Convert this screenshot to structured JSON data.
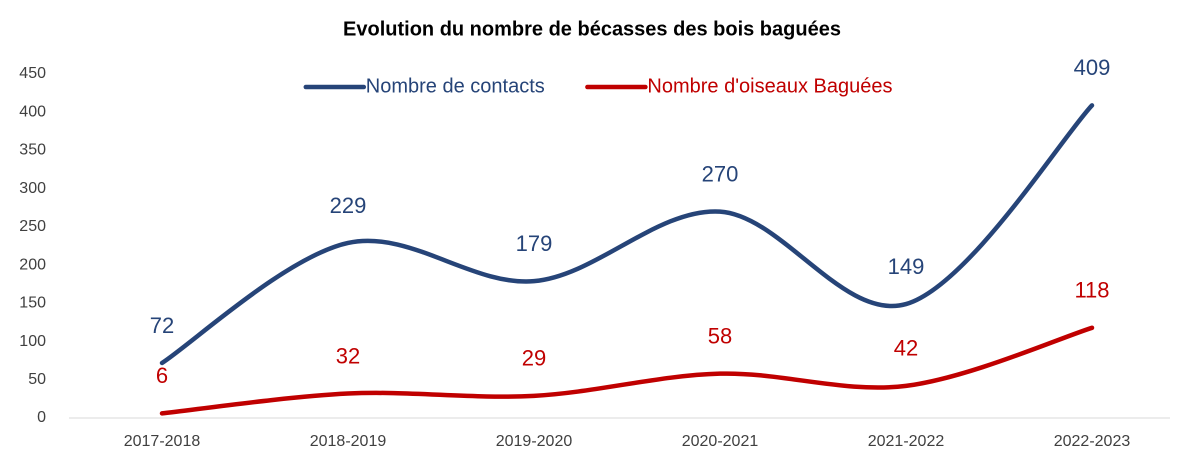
{
  "chart_data": {
    "type": "line",
    "title": "Evolution du nombre de bécasses des bois baguées",
    "categories": [
      "2017-2018",
      "2018-2019",
      "2019-2020",
      "2020-2021",
      "2021-2022",
      "2022-2023"
    ],
    "series": [
      {
        "name": "Nombre de contacts",
        "color": "#264478",
        "values": [
          72,
          229,
          179,
          270,
          149,
          409
        ]
      },
      {
        "name": "Nombre d'oiseaux Baguées",
        "color": "#c00000",
        "values": [
          6,
          32,
          29,
          58,
          42,
          118
        ]
      }
    ],
    "ylim": [
      0,
      450
    ],
    "yticks": [
      0,
      50,
      100,
      150,
      200,
      250,
      300,
      350,
      400,
      450
    ],
    "grid": false,
    "smooth": true,
    "legend": "top"
  }
}
